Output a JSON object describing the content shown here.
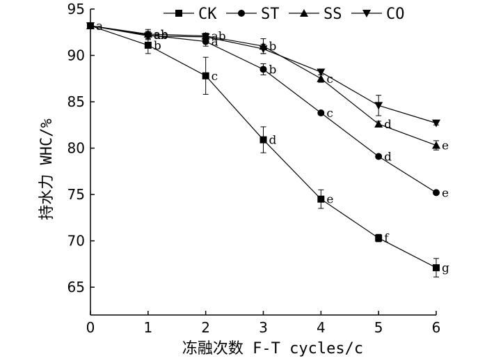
{
  "chart_data": {
    "type": "line",
    "xlabel": "冻融次数 F-T cycles/c",
    "ylabel": "持水力 WHC/%",
    "xlim": [
      0,
      6
    ],
    "ylim": [
      62,
      95
    ],
    "xticks": [
      0,
      1,
      2,
      3,
      4,
      5,
      6
    ],
    "yticks": [
      65,
      70,
      75,
      80,
      85,
      90,
      95
    ],
    "grid": false,
    "legend": "top",
    "x": [
      0,
      1,
      2,
      3,
      4,
      5,
      6
    ],
    "series": [
      {
        "name": "CK",
        "marker": "square",
        "values": [
          93.2,
          91.1,
          87.8,
          80.9,
          74.5,
          70.3,
          67.1
        ],
        "errors": [
          0.3,
          0.9,
          2.0,
          1.4,
          1.0,
          0.4,
          1.0
        ],
        "labels": [
          "a",
          "b",
          "c",
          "d",
          "e",
          "f",
          "g"
        ]
      },
      {
        "name": "ST",
        "marker": "circle",
        "values": [
          93.2,
          92.2,
          91.5,
          88.5,
          83.8,
          79.1,
          75.2
        ],
        "errors": [
          0.2,
          0.4,
          0.5,
          0.6,
          0.2,
          0.2,
          0.2
        ],
        "labels": [
          "",
          "ab",
          "a",
          "b",
          "c",
          "d",
          "e"
        ]
      },
      {
        "name": "SS",
        "marker": "triangle-up",
        "values": [
          93.2,
          92.3,
          92.1,
          91.0,
          87.5,
          82.6,
          80.3
        ],
        "errors": [
          0.2,
          0.5,
          0.3,
          0.8,
          0.4,
          0.3,
          0.5
        ],
        "labels": [
          "",
          "ab",
          "ab",
          "b",
          "c",
          "d",
          "e"
        ]
      },
      {
        "name": "CO",
        "marker": "triangle-down",
        "values": [
          93.2,
          92.1,
          92.0,
          90.7,
          88.2,
          84.6,
          82.7
        ],
        "errors": [
          0.2,
          0.4,
          0.3,
          0.5,
          0.3,
          1.1,
          0.2
        ],
        "labels": [
          "",
          "",
          "",
          "",
          "",
          "",
          ""
        ]
      }
    ]
  }
}
